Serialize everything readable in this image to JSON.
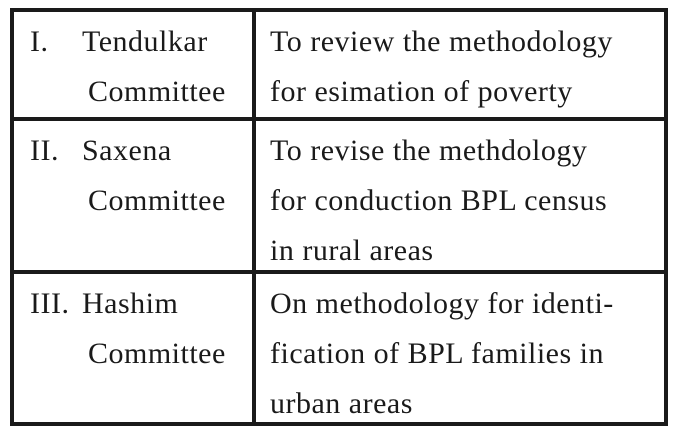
{
  "rows": [
    {
      "numeral": "I.",
      "name": "Tendulkar",
      "suffix": "Committee",
      "purpose": [
        "To review the methodology",
        "for esimation of poverty"
      ]
    },
    {
      "numeral": "II.",
      "name": "Saxena",
      "suffix": "Committee",
      "purpose": [
        "To revise the methdology",
        "for conduction BPL census",
        "in rural areas"
      ]
    },
    {
      "numeral": "III.",
      "name": "Hashim",
      "suffix": "Committee",
      "purpose": [
        "On methodology for identi-",
        "fication of BPL families in",
        "urban areas"
      ]
    }
  ]
}
